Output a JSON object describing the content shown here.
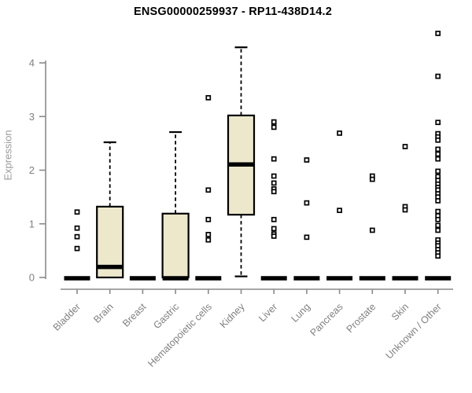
{
  "chart_data": {
    "type": "boxplot",
    "title": "ENSG00000259937 - RP11-438D14.2",
    "ylabel": "Expression",
    "xlabel": "",
    "ylim": [
      0,
      4.6
    ],
    "yticks": [
      0,
      1,
      2,
      3,
      4
    ],
    "grid": false,
    "categories": [
      "Bladder",
      "Brain",
      "Breast",
      "Gastric",
      "Hematopoietic cells",
      "Kidney",
      "Liver",
      "Lung",
      "Pancreas",
      "Prostate",
      "Skin",
      "Unknown / Other"
    ],
    "boxes": [
      {
        "category": "Bladder",
        "q1": 0,
        "median": 0,
        "q3": 0,
        "whisker_low": 0,
        "whisker_high": 0,
        "outliers": [
          1.22,
          0.92,
          0.76,
          0.54
        ]
      },
      {
        "category": "Brain",
        "q1": 0,
        "median": 0.21,
        "q3": 1.32,
        "whisker_low": 0,
        "whisker_high": 2.52,
        "outliers": []
      },
      {
        "category": "Breast",
        "q1": 0,
        "median": 0,
        "q3": 0,
        "whisker_low": 0,
        "whisker_high": 0,
        "outliers": []
      },
      {
        "category": "Gastric",
        "q1": 0,
        "median": 0,
        "q3": 1.19,
        "whisker_low": 0,
        "whisker_high": 2.71,
        "outliers": []
      },
      {
        "category": "Hematopoietic cells",
        "q1": 0,
        "median": 0,
        "q3": 0,
        "whisker_low": 0,
        "whisker_high": 0,
        "outliers": [
          3.35,
          1.63,
          1.08,
          0.8,
          0.7
        ]
      },
      {
        "category": "Kidney",
        "q1": 1.17,
        "median": 2.12,
        "q3": 3.02,
        "whisker_low": 0.02,
        "whisker_high": 4.29,
        "outliers": []
      },
      {
        "category": "Liver",
        "q1": 0,
        "median": 0,
        "q3": 0,
        "whisker_low": 0,
        "whisker_high": 0,
        "outliers": [
          2.9,
          2.8,
          2.21,
          1.89,
          1.76,
          1.65,
          1.6,
          1.08,
          0.91,
          0.81,
          0.77
        ]
      },
      {
        "category": "Lung",
        "q1": 0,
        "median": 0,
        "q3": 0,
        "whisker_low": 0,
        "whisker_high": 0,
        "outliers": [
          2.19,
          1.39,
          0.75
        ]
      },
      {
        "category": "Pancreas",
        "q1": 0,
        "median": 0,
        "q3": 0,
        "whisker_low": 0,
        "whisker_high": 0,
        "outliers": [
          2.69,
          1.25
        ]
      },
      {
        "category": "Prostate",
        "q1": 0,
        "median": 0,
        "q3": 0,
        "whisker_low": 0,
        "whisker_high": 0,
        "outliers": [
          1.89,
          1.83,
          0.88
        ]
      },
      {
        "category": "Skin",
        "q1": 0,
        "median": 0,
        "q3": 0,
        "whisker_low": 0,
        "whisker_high": 0,
        "outliers": [
          2.44,
          1.32,
          1.26
        ]
      },
      {
        "category": "Unknown / Other",
        "q1": 0,
        "median": 0,
        "q3": 0,
        "whisker_low": 0,
        "whisker_high": 0,
        "outliers": [
          4.55,
          3.75,
          2.89,
          2.68,
          2.62,
          2.56,
          2.39,
          2.3,
          2.21,
          1.98,
          1.88,
          1.81,
          1.74,
          1.68,
          1.63,
          1.56,
          1.5,
          1.43,
          1.23,
          1.15,
          1.08,
          0.97,
          0.88,
          0.7,
          0.64,
          0.59,
          0.52,
          0.46,
          0.4
        ]
      }
    ],
    "colors": {
      "box_fill": "#EDE8CC",
      "box_stroke": "#000000",
      "median": "#000000",
      "outlier_fill": "#FFFFFF",
      "outlier_stroke": "#000000",
      "axis": "#8A8A8A",
      "tick_label": "#808080",
      "axis_title": "#999999",
      "title": "#000000",
      "background": "#FFFFFF"
    }
  }
}
